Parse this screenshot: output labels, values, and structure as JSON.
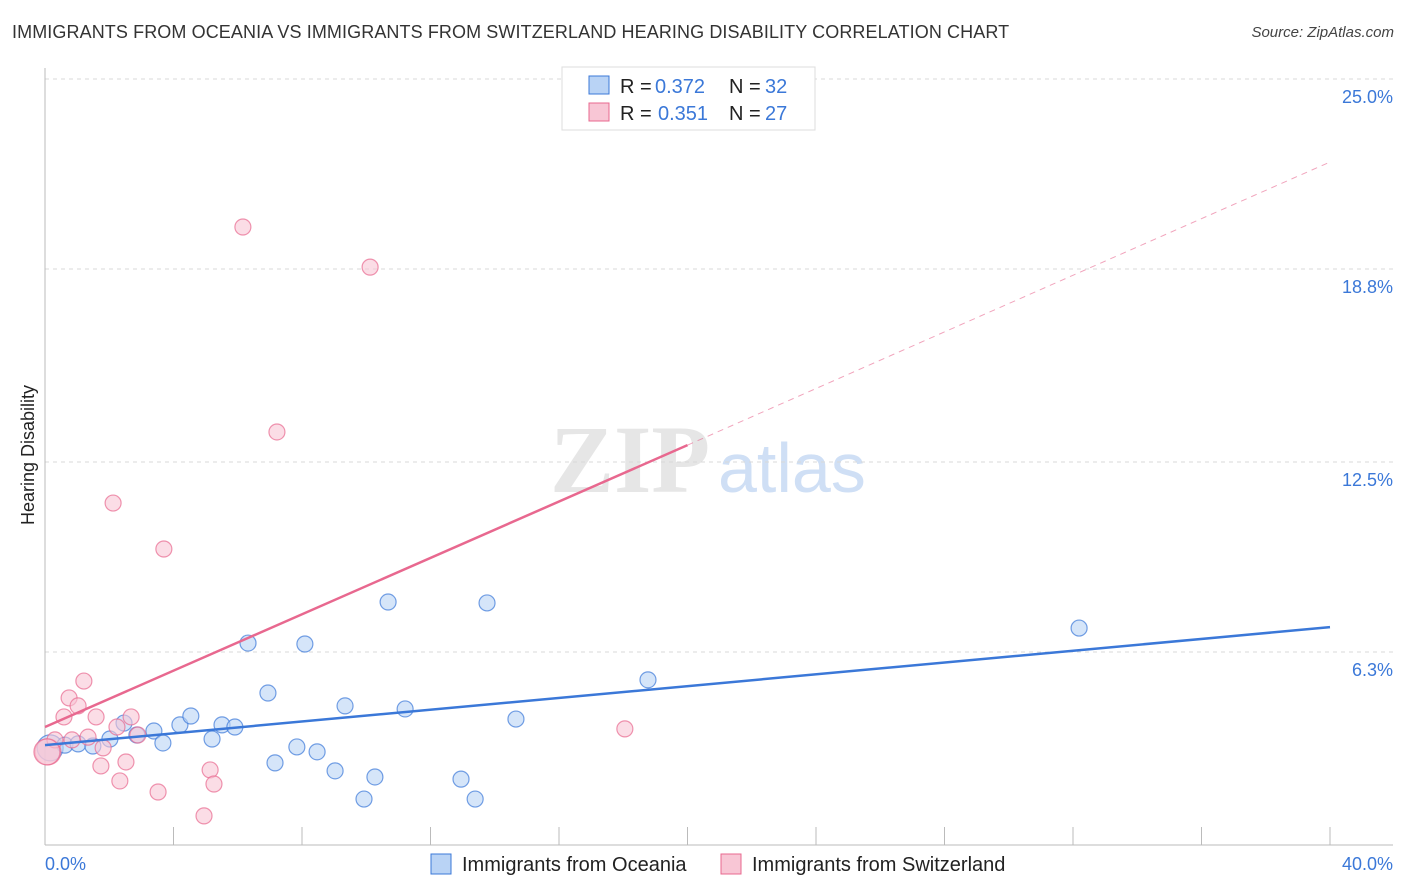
{
  "title": "IMMIGRANTS FROM OCEANIA VS IMMIGRANTS FROM SWITZERLAND HEARING DISABILITY CORRELATION CHART",
  "source": "Source: ZipAtlas.com",
  "watermark": "ZIPatlas",
  "chart_data": {
    "type": "scatter",
    "title": "IMMIGRANTS FROM OCEANIA VS IMMIGRANTS FROM SWITZERLAND HEARING DISABILITY CORRELATION CHART",
    "xlabel": "",
    "ylabel": "Hearing Disability",
    "xlim": [
      0,
      40
    ],
    "ylim": [
      0,
      25
    ],
    "x_tick_labels": [
      "0.0%",
      "40.0%"
    ],
    "y_ticks": [
      25.0,
      18.8,
      12.5,
      6.3
    ],
    "y_tick_labels": [
      "25.0%",
      "18.8%",
      "12.5%",
      "6.3%"
    ],
    "grid": true,
    "legend_position": "top-center",
    "series": [
      {
        "name": "Immigrants from Oceania",
        "color": "#3b78d8",
        "fill": "#b9d3f5",
        "R": "0.372",
        "N": "32",
        "trend": [
          [
            0,
            3.26
          ],
          [
            40,
            7.11
          ]
        ],
        "points": [
          [
            0.16,
            3.17
          ],
          [
            0.62,
            3.26
          ],
          [
            1.03,
            3.3
          ],
          [
            1.49,
            3.23
          ],
          [
            2.02,
            3.46
          ],
          [
            2.46,
            3.98
          ],
          [
            2.86,
            3.59
          ],
          [
            3.39,
            3.72
          ],
          [
            3.67,
            3.33
          ],
          [
            4.2,
            3.92
          ],
          [
            4.54,
            4.21
          ],
          [
            5.2,
            3.46
          ],
          [
            5.51,
            3.92
          ],
          [
            5.91,
            3.85
          ],
          [
            6.32,
            6.59
          ],
          [
            6.94,
            4.96
          ],
          [
            7.16,
            2.68
          ],
          [
            7.84,
            3.2
          ],
          [
            8.09,
            6.56
          ],
          [
            8.47,
            3.04
          ],
          [
            9.03,
            2.42
          ],
          [
            9.34,
            4.54
          ],
          [
            9.93,
            1.5
          ],
          [
            10.27,
            2.22
          ],
          [
            10.68,
            7.93
          ],
          [
            11.21,
            4.44
          ],
          [
            12.95,
            2.15
          ],
          [
            13.39,
            1.5
          ],
          [
            13.76,
            7.9
          ],
          [
            14.66,
            4.11
          ],
          [
            18.77,
            5.39
          ],
          [
            32.19,
            7.08
          ]
        ]
      },
      {
        "name": "Immigrants from Switzerland",
        "color": "#e8688f",
        "fill": "#f8c6d5",
        "R": "0.351",
        "N": "27",
        "trend": [
          [
            0,
            3.85
          ],
          [
            20,
            13.05
          ]
        ],
        "trend_extended": [
          [
            20,
            13.05
          ],
          [
            40,
            22.29
          ]
        ],
        "points": [
          [
            0.09,
            3.04
          ],
          [
            0.31,
            3.43
          ],
          [
            0.59,
            4.18
          ],
          [
            0.75,
            4.8
          ],
          [
            1.03,
            4.54
          ],
          [
            1.21,
            5.35
          ],
          [
            1.34,
            3.52
          ],
          [
            1.59,
            4.18
          ],
          [
            1.74,
            2.58
          ],
          [
            1.81,
            3.17
          ],
          [
            2.12,
            11.16
          ],
          [
            2.24,
            3.85
          ],
          [
            2.33,
            2.09
          ],
          [
            2.52,
            2.71
          ],
          [
            2.68,
            4.18
          ],
          [
            2.89,
            3.59
          ],
          [
            3.52,
            1.73
          ],
          [
            3.7,
            9.66
          ],
          [
            4.95,
            0.95
          ],
          [
            5.14,
            2.45
          ],
          [
            5.26,
            1.99
          ],
          [
            6.16,
            20.17
          ],
          [
            7.22,
            13.48
          ],
          [
            10.12,
            18.86
          ],
          [
            18.05,
            3.79
          ],
          [
            0.84,
            3.43
          ],
          [
            0.06,
            3.04
          ]
        ]
      }
    ],
    "legend": {
      "r_label": "R =",
      "n_label": "N ="
    }
  }
}
